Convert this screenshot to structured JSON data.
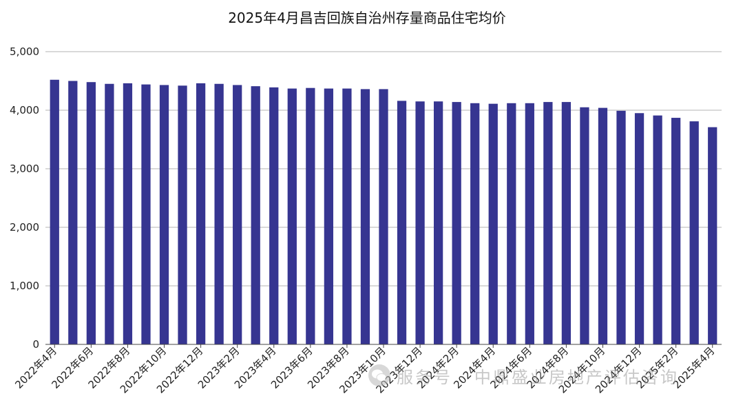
{
  "chart_data": {
    "type": "bar",
    "title": "2025年4月昌吉回族自治州存量商品住宅均价",
    "xlabel": "",
    "ylabel": "",
    "ylim": [
      0,
      5000
    ],
    "yticks": [
      "0",
      "1,000",
      "2,000",
      "3,000",
      "4,000",
      "5,000"
    ],
    "grid": true,
    "bar_color": "#363591",
    "categories": [
      "2022年4月",
      "2022年5月",
      "2022年6月",
      "2022年7月",
      "2022年8月",
      "2022年9月",
      "2022年10月",
      "2022年11月",
      "2022年12月",
      "2023年1月",
      "2023年2月",
      "2023年3月",
      "2023年4月",
      "2023年5月",
      "2023年6月",
      "2023年7月",
      "2023年8月",
      "2023年9月",
      "2023年10月",
      "2023年11月",
      "2023年12月",
      "2024年1月",
      "2024年2月",
      "2024年3月",
      "2024年4月",
      "2024年5月",
      "2024年6月",
      "2024年7月",
      "2024年8月",
      "2024年9月",
      "2024年10月",
      "2024年11月",
      "2024年12月",
      "2025年1月",
      "2025年2月",
      "2025年3月",
      "2025年4月"
    ],
    "x_tick_labels": [
      "2022年4月",
      "2022年6月",
      "2022年8月",
      "2022年10月",
      "2022年12月",
      "2023年2月",
      "2023年4月",
      "2023年6月",
      "2023年8月",
      "2023年10月",
      "2023年12月",
      "2024年2月",
      "2024年4月",
      "2024年6月",
      "2024年8月",
      "2024年10月",
      "2024年12月",
      "2025年2月",
      "2025年4月"
    ],
    "values": [
      4520,
      4500,
      4480,
      4450,
      4460,
      4440,
      4430,
      4420,
      4460,
      4450,
      4430,
      4410,
      4390,
      4370,
      4380,
      4370,
      4370,
      4360,
      4360,
      4160,
      4150,
      4150,
      4140,
      4120,
      4110,
      4120,
      4120,
      4140,
      4140,
      4050,
      4040,
      3990,
      3950,
      3910,
      3870,
      3810,
      3710
    ]
  },
  "watermark": {
    "text": "服务号 · 中鼎盛业房地产评估咨询",
    "icon": "wechat-icon"
  }
}
